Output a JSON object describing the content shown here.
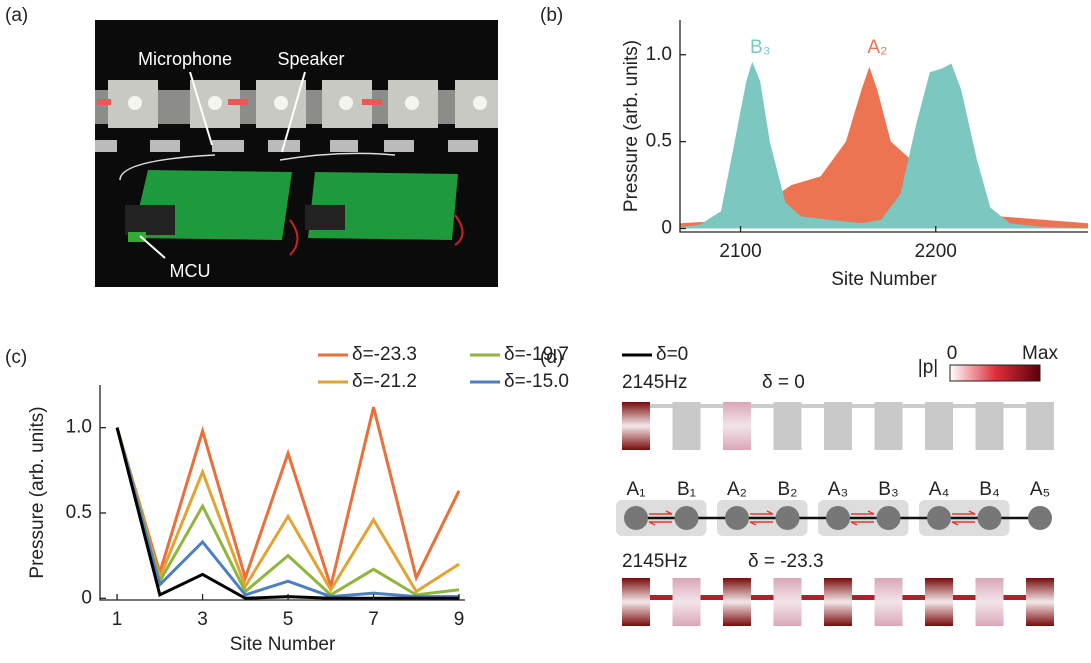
{
  "panel_labels": [
    "(a)",
    "(b)",
    "(c)",
    "(d)"
  ],
  "photo": {
    "labels": [
      "Microphone",
      "Speaker",
      "MCU"
    ]
  },
  "chart_data": [
    {
      "type": "area",
      "xlabel": "Site Number",
      "ylabel": "Pressure (arb. units)",
      "xlim": [
        2069,
        2278
      ],
      "xticks": [
        2100,
        2200
      ],
      "ylim": [
        -0.02,
        1.2
      ],
      "yticks": [
        0,
        0.5,
        {
          "value": 1,
          "label": "1.0"
        }
      ],
      "series": [
        {
          "name": "A₂",
          "color": "#ec7452",
          "x": [
            2069,
            2100,
            2126,
            2141,
            2154,
            2162,
            2166,
            2170,
            2177,
            2187,
            2197,
            2213,
            2233,
            2278
          ],
          "values": [
            0.03,
            0.05,
            0.25,
            0.3,
            0.5,
            0.8,
            0.93,
            0.8,
            0.5,
            0.4,
            0.3,
            0.15,
            0.07,
            0.03
          ]
        },
        {
          "name": "B₃",
          "color": "#7cc7bf",
          "x": [
            2069,
            2079,
            2090,
            2097,
            2103,
            2106,
            2110,
            2115,
            2123,
            2131,
            2146,
            2162,
            2172,
            2182,
            2190,
            2197,
            2203,
            2208,
            2213,
            2221,
            2228,
            2238,
            2254,
            2278
          ],
          "values": [
            0.01,
            0.02,
            0.1,
            0.5,
            0.85,
            0.96,
            0.85,
            0.5,
            0.15,
            0.07,
            0.05,
            0.03,
            0.05,
            0.2,
            0.6,
            0.9,
            0.92,
            0.95,
            0.8,
            0.4,
            0.12,
            0.03,
            0.01,
            0
          ]
        }
      ]
    },
    {
      "type": "line",
      "xlabel": "Site Number",
      "ylabel": "Pressure (arb. units)",
      "x": [
        1,
        2,
        3,
        4,
        5,
        6,
        7,
        8,
        9
      ],
      "xlim": [
        0.6,
        9.14
      ],
      "xticks": [
        1,
        3,
        5,
        7,
        9
      ],
      "ylim": [
        -0.01,
        1.25
      ],
      "yticks": [
        0,
        0.5,
        {
          "value": 1,
          "label": "1.0"
        }
      ],
      "series": [
        {
          "name": "δ=-23.3",
          "color": "#ea6f3a",
          "values": [
            1,
            0.15,
            0.98,
            0.12,
            0.85,
            0.07,
            1.12,
            0.12,
            0.63
          ]
        },
        {
          "name": "δ=-21.2",
          "color": "#e3a232",
          "values": [
            1,
            0.12,
            0.74,
            0.07,
            0.48,
            0.05,
            0.46,
            0.04,
            0.2
          ]
        },
        {
          "name": "δ=-19.7",
          "color": "#8fb53d",
          "values": [
            1,
            0.1,
            0.54,
            0.04,
            0.25,
            0.02,
            0.17,
            0.02,
            0.05
          ]
        },
        {
          "name": "δ=-15.0",
          "color": "#4c7fc2",
          "values": [
            1,
            0.08,
            0.33,
            0.02,
            0.1,
            0.01,
            0.03,
            0.01,
            0.01
          ]
        },
        {
          "name": "δ=0",
          "color": "#000000",
          "values": [
            1,
            0.02,
            0.14,
            0,
            0.01,
            0,
            0,
            0,
            0
          ]
        }
      ]
    }
  ],
  "diagram": {
    "colorbar": {
      "title": "|p|",
      "min": "0",
      "max": "Max"
    },
    "top": {
      "frequency": "2145Hz",
      "detuning": "δ = 0"
    },
    "bottom": {
      "frequency": "2145Hz",
      "detuning": "δ = -23.3"
    },
    "sites": [
      "A₁",
      "B₁",
      "A₂",
      "B₂",
      "A₃",
      "B₃",
      "A₄",
      "B₄",
      "A₅"
    ]
  }
}
